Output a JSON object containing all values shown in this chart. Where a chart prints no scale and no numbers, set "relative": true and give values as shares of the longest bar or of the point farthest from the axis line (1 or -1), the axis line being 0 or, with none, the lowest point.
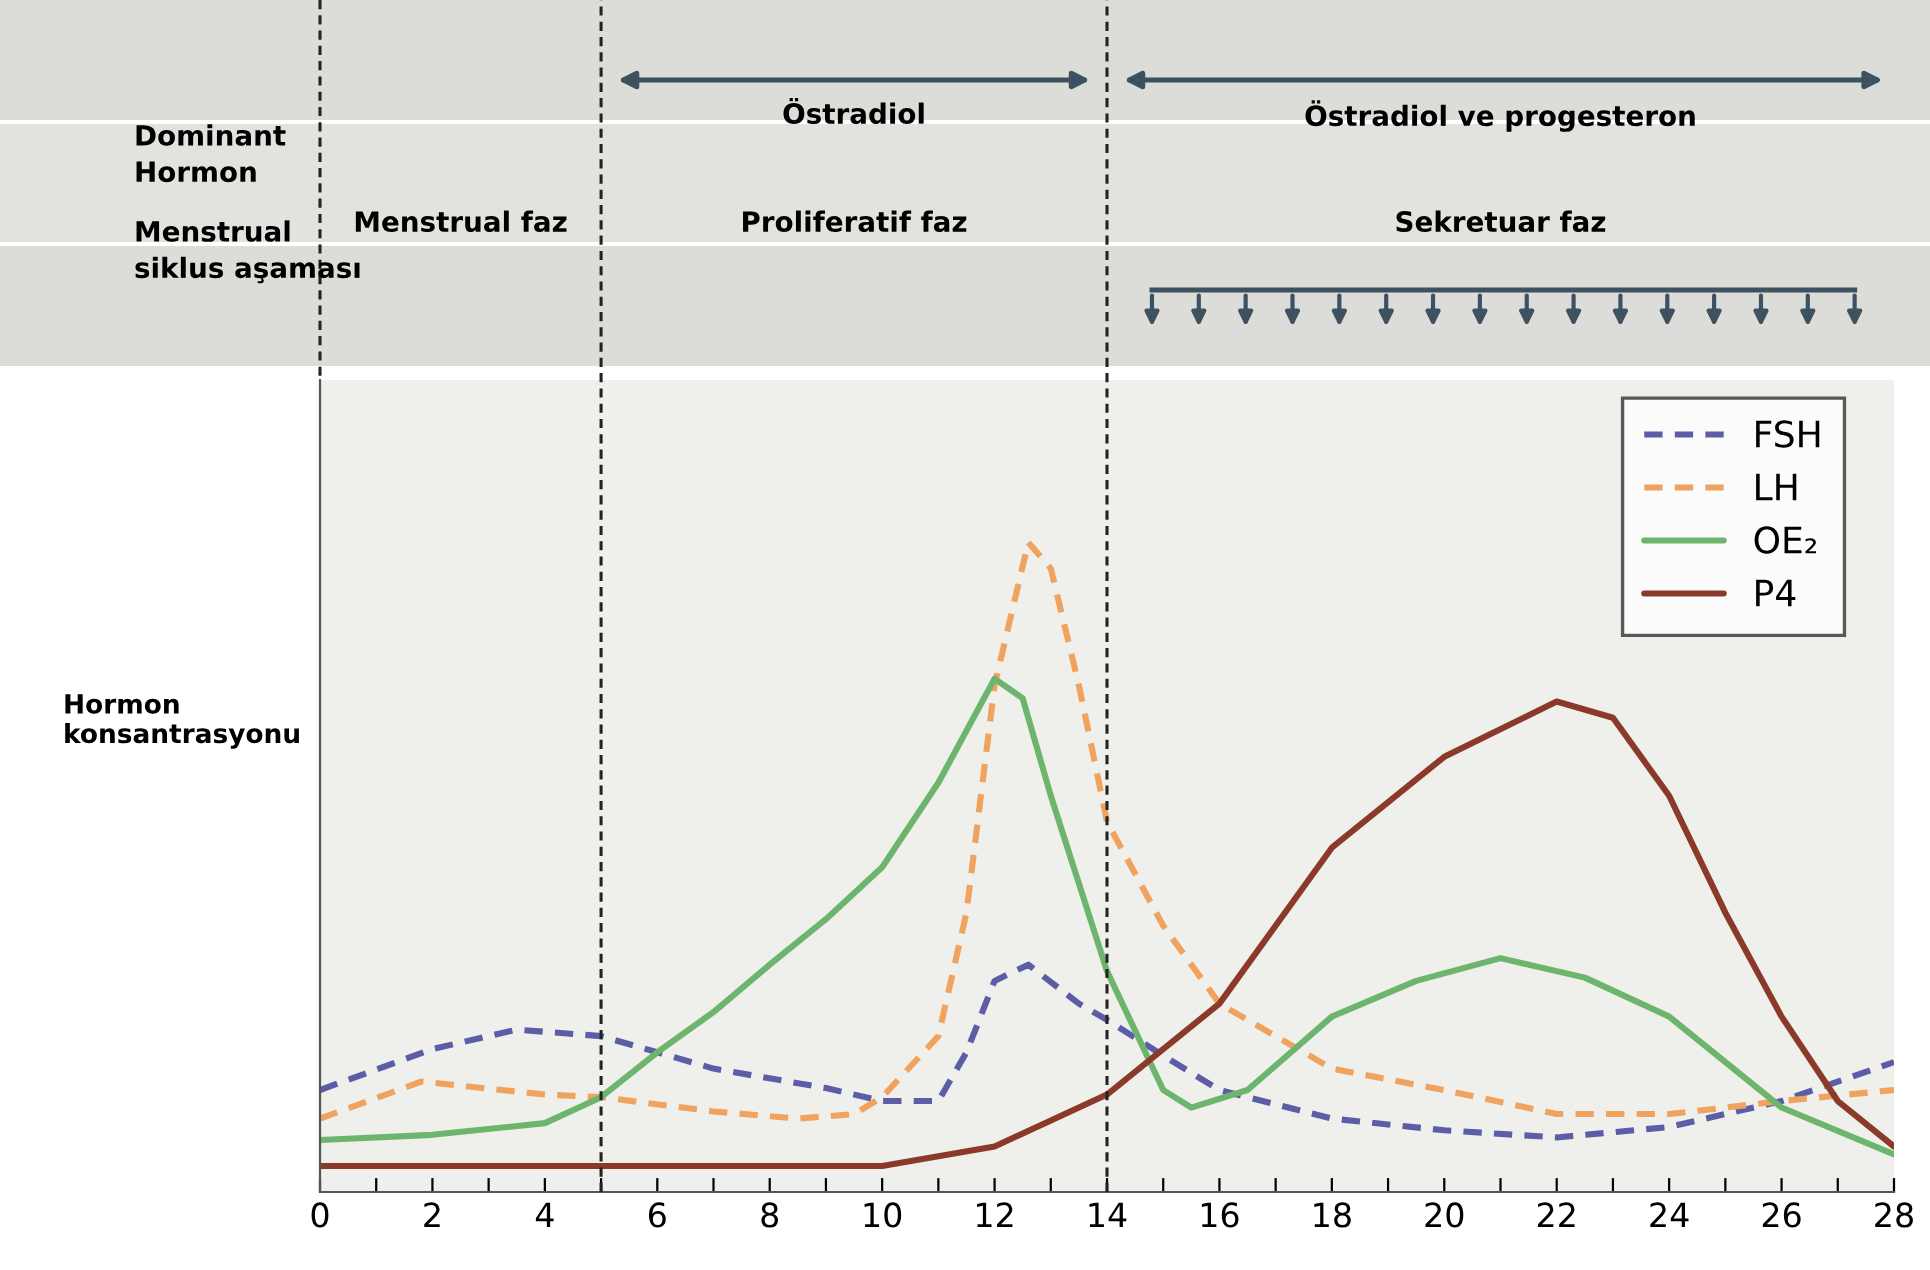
{
  "chart_data": {
    "type": "line",
    "relative": true,
    "ylabel": "Hormon\nkonsantrasyonu",
    "xlim": [
      0,
      28
    ],
    "xticks": [
      0,
      {
        "value": 1,
        "label": null
      },
      2,
      {
        "value": 3,
        "label": null
      },
      4,
      {
        "value": 5,
        "label": null
      },
      6,
      {
        "value": 7,
        "label": null
      },
      8,
      {
        "value": 9,
        "label": null
      },
      10,
      {
        "value": 11,
        "label": null
      },
      12,
      {
        "value": 13,
        "label": null
      },
      14,
      {
        "value": 15,
        "label": null
      },
      16,
      {
        "value": 17,
        "label": null
      },
      18,
      {
        "value": 19,
        "label": null
      },
      20,
      {
        "value": 21,
        "label": null
      },
      22,
      {
        "value": 23,
        "label": null
      },
      24,
      {
        "value": 25,
        "label": null
      },
      26,
      {
        "value": 27,
        "label": null
      },
      28
    ],
    "legend": "top right",
    "grid": false,
    "marker": "none",
    "ref_lines": [
      {
        "axis": "x",
        "value": 5,
        "line_style": "dashed",
        "color": "#222222"
      },
      {
        "axis": "x",
        "value": 14,
        "line_style": "dashed",
        "color": "#222222"
      }
    ],
    "annotations": [
      "Dominant\nHormon",
      "Menstrual\nsiklus aşaması",
      "Östradiol",
      "Östradiol ve progesteron",
      "Menstrual faz",
      "Proliferatif faz",
      "Sekretuar faz"
    ],
    "series": [
      {
        "name": "FSH",
        "color": "#5b5ea6",
        "line_style": "dashed",
        "x": [
          0,
          2,
          3.5,
          5,
          7,
          9,
          10,
          11,
          11.5,
          12,
          12.6,
          13.5,
          14,
          15,
          16,
          18,
          20,
          22,
          24,
          26,
          28
        ],
        "values": [
          0.157,
          0.22,
          0.25,
          0.24,
          0.19,
          0.16,
          0.14,
          0.14,
          0.215,
          0.325,
          0.35,
          0.29,
          0.265,
          0.21,
          0.157,
          0.113,
          0.095,
          0.084,
          0.1,
          0.14,
          0.2
        ]
      },
      {
        "name": "LH",
        "color": "#f0a35e",
        "line_style": "dashed",
        "x": [
          0,
          1.8,
          4,
          5,
          7,
          8.5,
          9.5,
          10,
          11,
          11.5,
          12,
          12.6,
          13,
          13.5,
          14,
          15,
          16,
          18,
          20,
          22,
          24,
          26,
          28
        ],
        "values": [
          0.113,
          0.17,
          0.15,
          0.146,
          0.124,
          0.113,
          0.12,
          0.146,
          0.24,
          0.43,
          0.78,
          1.0,
          0.96,
          0.78,
          0.57,
          0.41,
          0.29,
          0.19,
          0.157,
          0.12,
          0.12,
          0.14,
          0.157
        ]
      },
      {
        "name": "OE₂",
        "color": "#6db56d",
        "line_style": "solid",
        "x": [
          0,
          2,
          4,
          5,
          6,
          7,
          8,
          9,
          10,
          11,
          12,
          12.5,
          13,
          14,
          15,
          15.5,
          16.5,
          18,
          19.5,
          21,
          22.5,
          24,
          26,
          28
        ],
        "values": [
          0.08,
          0.088,
          0.106,
          0.146,
          0.215,
          0.277,
          0.35,
          0.42,
          0.5,
          0.63,
          0.79,
          0.76,
          0.61,
          0.34,
          0.157,
          0.13,
          0.157,
          0.27,
          0.325,
          0.36,
          0.33,
          0.27,
          0.13,
          0.058
        ]
      },
      {
        "name": "P4",
        "color": "#8b3a2a",
        "line_style": "solid",
        "x": [
          0,
          5,
          10,
          12,
          14,
          16,
          18,
          20,
          22,
          23,
          24,
          25,
          26,
          27,
          28
        ],
        "values": [
          0.04,
          0.04,
          0.04,
          0.07,
          0.15,
          0.29,
          0.53,
          0.67,
          0.755,
          0.73,
          0.61,
          0.43,
          0.27,
          0.14,
          0.07
        ]
      }
    ]
  }
}
